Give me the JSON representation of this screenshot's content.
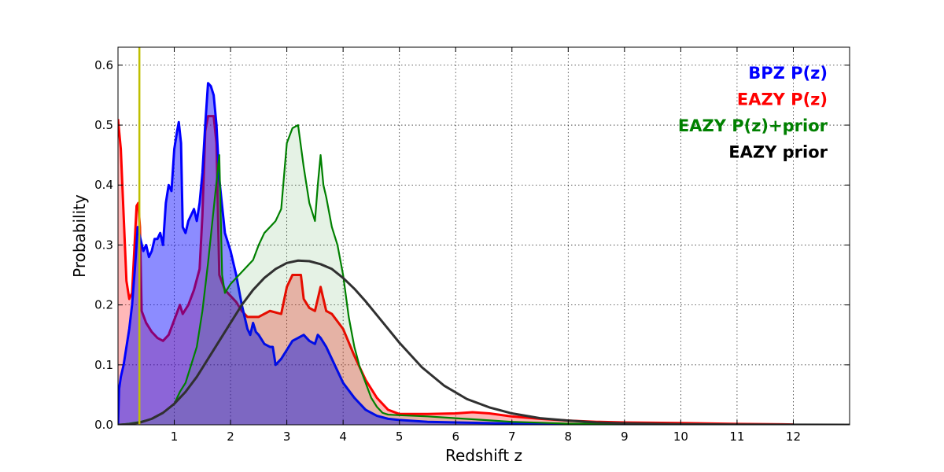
{
  "chart_data": {
    "type": "area",
    "xlabel": "Redshift z",
    "ylabel": "Probability",
    "xlim": [
      0,
      13
    ],
    "ylim": [
      0,
      0.63
    ],
    "x_ticks": [
      1,
      2,
      3,
      4,
      5,
      6,
      7,
      8,
      9,
      10,
      11,
      12
    ],
    "y_ticks": [
      0.0,
      0.1,
      0.2,
      0.3,
      0.4,
      0.5,
      0.6
    ],
    "grid": true,
    "legend_placement": "top-right",
    "vline": {
      "x": 0.38,
      "color": "#bfbf00"
    },
    "series": [
      {
        "name": "EAZY P(z)",
        "line_color": "#ff0000",
        "fill_color": "#ff0000",
        "fill_opacity": 0.28,
        "line_width": 3,
        "points": [
          [
            0.0,
            0.51
          ],
          [
            0.05,
            0.46
          ],
          [
            0.1,
            0.35
          ],
          [
            0.15,
            0.24
          ],
          [
            0.2,
            0.21
          ],
          [
            0.25,
            0.22
          ],
          [
            0.3,
            0.31
          ],
          [
            0.33,
            0.365
          ],
          [
            0.36,
            0.37
          ],
          [
            0.39,
            0.33
          ],
          [
            0.42,
            0.19
          ],
          [
            0.5,
            0.17
          ],
          [
            0.6,
            0.155
          ],
          [
            0.7,
            0.145
          ],
          [
            0.8,
            0.14
          ],
          [
            0.9,
            0.15
          ],
          [
            1.0,
            0.175
          ],
          [
            1.1,
            0.2
          ],
          [
            1.15,
            0.185
          ],
          [
            1.25,
            0.2
          ],
          [
            1.35,
            0.225
          ],
          [
            1.45,
            0.26
          ],
          [
            1.5,
            0.35
          ],
          [
            1.55,
            0.49
          ],
          [
            1.6,
            0.515
          ],
          [
            1.7,
            0.515
          ],
          [
            1.75,
            0.47
          ],
          [
            1.8,
            0.25
          ],
          [
            1.9,
            0.225
          ],
          [
            2.0,
            0.215
          ],
          [
            2.1,
            0.205
          ],
          [
            2.2,
            0.19
          ],
          [
            2.3,
            0.18
          ],
          [
            2.5,
            0.18
          ],
          [
            2.7,
            0.19
          ],
          [
            2.9,
            0.185
          ],
          [
            3.0,
            0.23
          ],
          [
            3.1,
            0.25
          ],
          [
            3.25,
            0.25
          ],
          [
            3.3,
            0.21
          ],
          [
            3.4,
            0.195
          ],
          [
            3.5,
            0.19
          ],
          [
            3.6,
            0.23
          ],
          [
            3.7,
            0.19
          ],
          [
            3.8,
            0.185
          ],
          [
            4.0,
            0.16
          ],
          [
            4.2,
            0.115
          ],
          [
            4.4,
            0.075
          ],
          [
            4.6,
            0.045
          ],
          [
            4.8,
            0.025
          ],
          [
            5.0,
            0.018
          ],
          [
            5.5,
            0.018
          ],
          [
            6.0,
            0.019
          ],
          [
            6.3,
            0.021
          ],
          [
            6.6,
            0.019
          ],
          [
            7.0,
            0.014
          ],
          [
            7.5,
            0.01
          ],
          [
            8.0,
            0.007
          ],
          [
            8.5,
            0.005
          ],
          [
            9.0,
            0.004
          ],
          [
            10.0,
            0.003
          ],
          [
            11.0,
            0.0015
          ],
          [
            11.8,
            0.0008
          ],
          [
            12.0,
            0.0005
          ]
        ]
      },
      {
        "name": "BPZ P(z)",
        "line_color": "#0000ff",
        "fill_color": "#0000ff",
        "fill_opacity": 0.45,
        "line_width": 3,
        "points": [
          [
            0.0,
            0.0
          ],
          [
            0.02,
            0.06
          ],
          [
            0.05,
            0.08
          ],
          [
            0.1,
            0.1
          ],
          [
            0.15,
            0.13
          ],
          [
            0.2,
            0.16
          ],
          [
            0.25,
            0.2
          ],
          [
            0.3,
            0.26
          ],
          [
            0.35,
            0.33
          ],
          [
            0.4,
            0.31
          ],
          [
            0.45,
            0.29
          ],
          [
            0.5,
            0.3
          ],
          [
            0.55,
            0.28
          ],
          [
            0.6,
            0.29
          ],
          [
            0.65,
            0.31
          ],
          [
            0.7,
            0.31
          ],
          [
            0.75,
            0.32
          ],
          [
            0.8,
            0.3
          ],
          [
            0.85,
            0.37
          ],
          [
            0.9,
            0.4
          ],
          [
            0.95,
            0.39
          ],
          [
            1.0,
            0.46
          ],
          [
            1.05,
            0.49
          ],
          [
            1.08,
            0.505
          ],
          [
            1.12,
            0.47
          ],
          [
            1.15,
            0.33
          ],
          [
            1.2,
            0.32
          ],
          [
            1.25,
            0.34
          ],
          [
            1.3,
            0.35
          ],
          [
            1.35,
            0.36
          ],
          [
            1.4,
            0.34
          ],
          [
            1.45,
            0.37
          ],
          [
            1.5,
            0.42
          ],
          [
            1.55,
            0.5
          ],
          [
            1.6,
            0.57
          ],
          [
            1.65,
            0.565
          ],
          [
            1.7,
            0.55
          ],
          [
            1.75,
            0.5
          ],
          [
            1.8,
            0.41
          ],
          [
            1.9,
            0.32
          ],
          [
            2.0,
            0.29
          ],
          [
            2.1,
            0.25
          ],
          [
            2.2,
            0.2
          ],
          [
            2.3,
            0.16
          ],
          [
            2.35,
            0.15
          ],
          [
            2.4,
            0.17
          ],
          [
            2.45,
            0.155
          ],
          [
            2.5,
            0.15
          ],
          [
            2.6,
            0.135
          ],
          [
            2.7,
            0.13
          ],
          [
            2.75,
            0.13
          ],
          [
            2.8,
            0.1
          ],
          [
            2.9,
            0.11
          ],
          [
            3.0,
            0.125
          ],
          [
            3.1,
            0.14
          ],
          [
            3.2,
            0.145
          ],
          [
            3.3,
            0.15
          ],
          [
            3.4,
            0.14
          ],
          [
            3.5,
            0.135
          ],
          [
            3.55,
            0.15
          ],
          [
            3.6,
            0.145
          ],
          [
            3.7,
            0.13
          ],
          [
            3.8,
            0.11
          ],
          [
            3.9,
            0.09
          ],
          [
            4.0,
            0.07
          ],
          [
            4.2,
            0.045
          ],
          [
            4.4,
            0.025
          ],
          [
            4.6,
            0.015
          ],
          [
            4.8,
            0.01
          ],
          [
            5.0,
            0.008
          ],
          [
            5.5,
            0.005
          ],
          [
            6.0,
            0.004
          ],
          [
            7.0,
            0.002
          ],
          [
            8.0,
            0.001
          ],
          [
            9.0,
            0.0005
          ]
        ]
      },
      {
        "name": "EAZY P(z)+prior",
        "line_color": "#008000",
        "fill_color": "#008000",
        "fill_opacity": 0.1,
        "line_width": 2.2,
        "points": [
          [
            0.0,
            0.0
          ],
          [
            0.2,
            0.002
          ],
          [
            0.4,
            0.005
          ],
          [
            0.6,
            0.01
          ],
          [
            0.8,
            0.02
          ],
          [
            1.0,
            0.035
          ],
          [
            1.1,
            0.055
          ],
          [
            1.2,
            0.07
          ],
          [
            1.3,
            0.1
          ],
          [
            1.4,
            0.13
          ],
          [
            1.5,
            0.19
          ],
          [
            1.6,
            0.27
          ],
          [
            1.7,
            0.36
          ],
          [
            1.8,
            0.45
          ],
          [
            1.85,
            0.25
          ],
          [
            1.9,
            0.22
          ],
          [
            2.0,
            0.235
          ],
          [
            2.1,
            0.245
          ],
          [
            2.2,
            0.255
          ],
          [
            2.3,
            0.265
          ],
          [
            2.4,
            0.275
          ],
          [
            2.5,
            0.3
          ],
          [
            2.6,
            0.32
          ],
          [
            2.7,
            0.33
          ],
          [
            2.8,
            0.34
          ],
          [
            2.9,
            0.36
          ],
          [
            3.0,
            0.47
          ],
          [
            3.1,
            0.495
          ],
          [
            3.2,
            0.5
          ],
          [
            3.3,
            0.43
          ],
          [
            3.4,
            0.37
          ],
          [
            3.5,
            0.34
          ],
          [
            3.55,
            0.4
          ],
          [
            3.6,
            0.45
          ],
          [
            3.65,
            0.4
          ],
          [
            3.7,
            0.38
          ],
          [
            3.8,
            0.33
          ],
          [
            3.9,
            0.3
          ],
          [
            4.0,
            0.25
          ],
          [
            4.1,
            0.18
          ],
          [
            4.2,
            0.13
          ],
          [
            4.3,
            0.095
          ],
          [
            4.4,
            0.07
          ],
          [
            4.5,
            0.045
          ],
          [
            4.6,
            0.03
          ],
          [
            4.7,
            0.02
          ],
          [
            4.8,
            0.017
          ],
          [
            5.0,
            0.016
          ],
          [
            5.5,
            0.014
          ],
          [
            6.0,
            0.011
          ],
          [
            6.5,
            0.008
          ],
          [
            7.0,
            0.005
          ],
          [
            8.0,
            0.002
          ],
          [
            9.0,
            0.001
          ],
          [
            10.0,
            0.0005
          ]
        ]
      },
      {
        "name": "EAZY prior",
        "line_color": "#303030",
        "fill_color": "none",
        "fill_opacity": 0,
        "line_width": 3,
        "points": [
          [
            0.0,
            0.0
          ],
          [
            0.2,
            0.001
          ],
          [
            0.4,
            0.004
          ],
          [
            0.6,
            0.01
          ],
          [
            0.8,
            0.02
          ],
          [
            1.0,
            0.035
          ],
          [
            1.2,
            0.055
          ],
          [
            1.4,
            0.08
          ],
          [
            1.6,
            0.11
          ],
          [
            1.8,
            0.14
          ],
          [
            2.0,
            0.17
          ],
          [
            2.2,
            0.2
          ],
          [
            2.4,
            0.225
          ],
          [
            2.6,
            0.245
          ],
          [
            2.8,
            0.26
          ],
          [
            3.0,
            0.27
          ],
          [
            3.2,
            0.274
          ],
          [
            3.4,
            0.273
          ],
          [
            3.6,
            0.268
          ],
          [
            3.8,
            0.26
          ],
          [
            4.0,
            0.245
          ],
          [
            4.2,
            0.227
          ],
          [
            4.4,
            0.206
          ],
          [
            4.6,
            0.183
          ],
          [
            4.8,
            0.16
          ],
          [
            5.0,
            0.137
          ],
          [
            5.4,
            0.096
          ],
          [
            5.8,
            0.065
          ],
          [
            6.2,
            0.043
          ],
          [
            6.6,
            0.029
          ],
          [
            7.0,
            0.019
          ],
          [
            7.5,
            0.011
          ],
          [
            8.0,
            0.007
          ],
          [
            8.5,
            0.004
          ],
          [
            9.0,
            0.0025
          ],
          [
            10.0,
            0.001
          ],
          [
            11.0,
            0.0003
          ],
          [
            12.0,
            0.0001
          ],
          [
            13.0,
            0.0
          ]
        ]
      }
    ],
    "legend": [
      {
        "label": "BPZ P(z)",
        "color": "#0000ff"
      },
      {
        "label": "EAZY P(z)",
        "color": "#ff0000"
      },
      {
        "label": "EAZY P(z)+prior",
        "color": "#008000"
      },
      {
        "label": "EAZY prior",
        "color": "#000000"
      }
    ]
  }
}
